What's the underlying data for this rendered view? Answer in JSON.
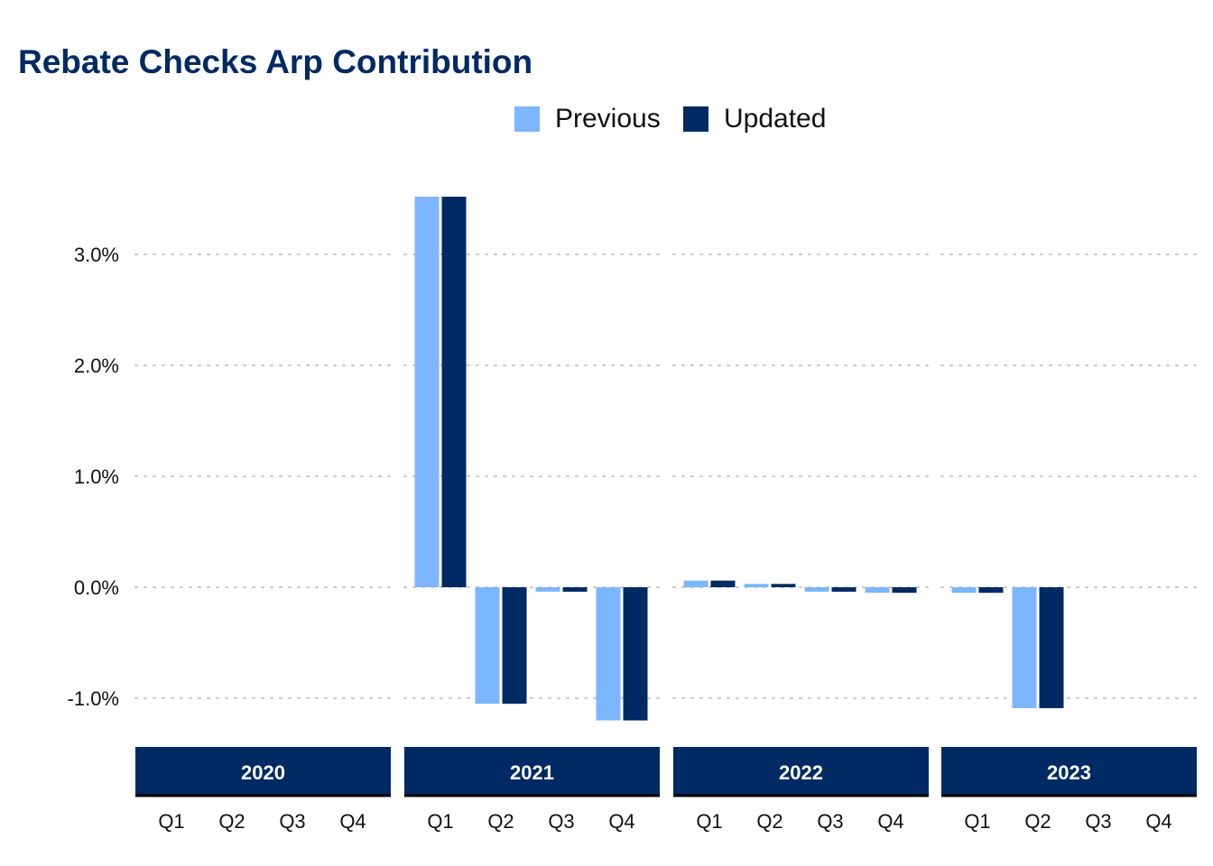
{
  "chart_data": {
    "type": "bar",
    "title": "Rebate Checks Arp Contribution",
    "xlabel": "",
    "ylabel": "",
    "ylim": [
      -1.42,
      3.72
    ],
    "yticks": [
      -1.0,
      0.0,
      1.0,
      2.0,
      3.0
    ],
    "ytick_labels": [
      "-1.0%",
      "0.0%",
      "1.0%",
      "2.0%",
      "3.0%"
    ],
    "grid": true,
    "legend_position": "top-center",
    "facets": [
      "2020",
      "2021",
      "2022",
      "2023"
    ],
    "categories": [
      "Q1",
      "Q2",
      "Q3",
      "Q4"
    ],
    "series": [
      {
        "name": "Previous",
        "color": "#7cb6ff",
        "values": [
          [
            null,
            null,
            null,
            null
          ],
          [
            3.52,
            -1.05,
            -0.04,
            -1.2
          ],
          [
            0.06,
            0.03,
            -0.04,
            -0.05
          ],
          [
            -0.05,
            -1.09,
            0.0,
            0.0
          ]
        ]
      },
      {
        "name": "Updated",
        "color": "#002a63",
        "values": [
          [
            null,
            null,
            null,
            null
          ],
          [
            3.52,
            -1.05,
            -0.04,
            -1.2
          ],
          [
            0.06,
            0.03,
            -0.04,
            -0.05
          ],
          [
            -0.05,
            -1.09,
            0.0,
            0.0
          ]
        ]
      }
    ]
  },
  "colors": {
    "title": "#002a63",
    "strip": "#002a63",
    "grid": "#c8c8c8"
  }
}
